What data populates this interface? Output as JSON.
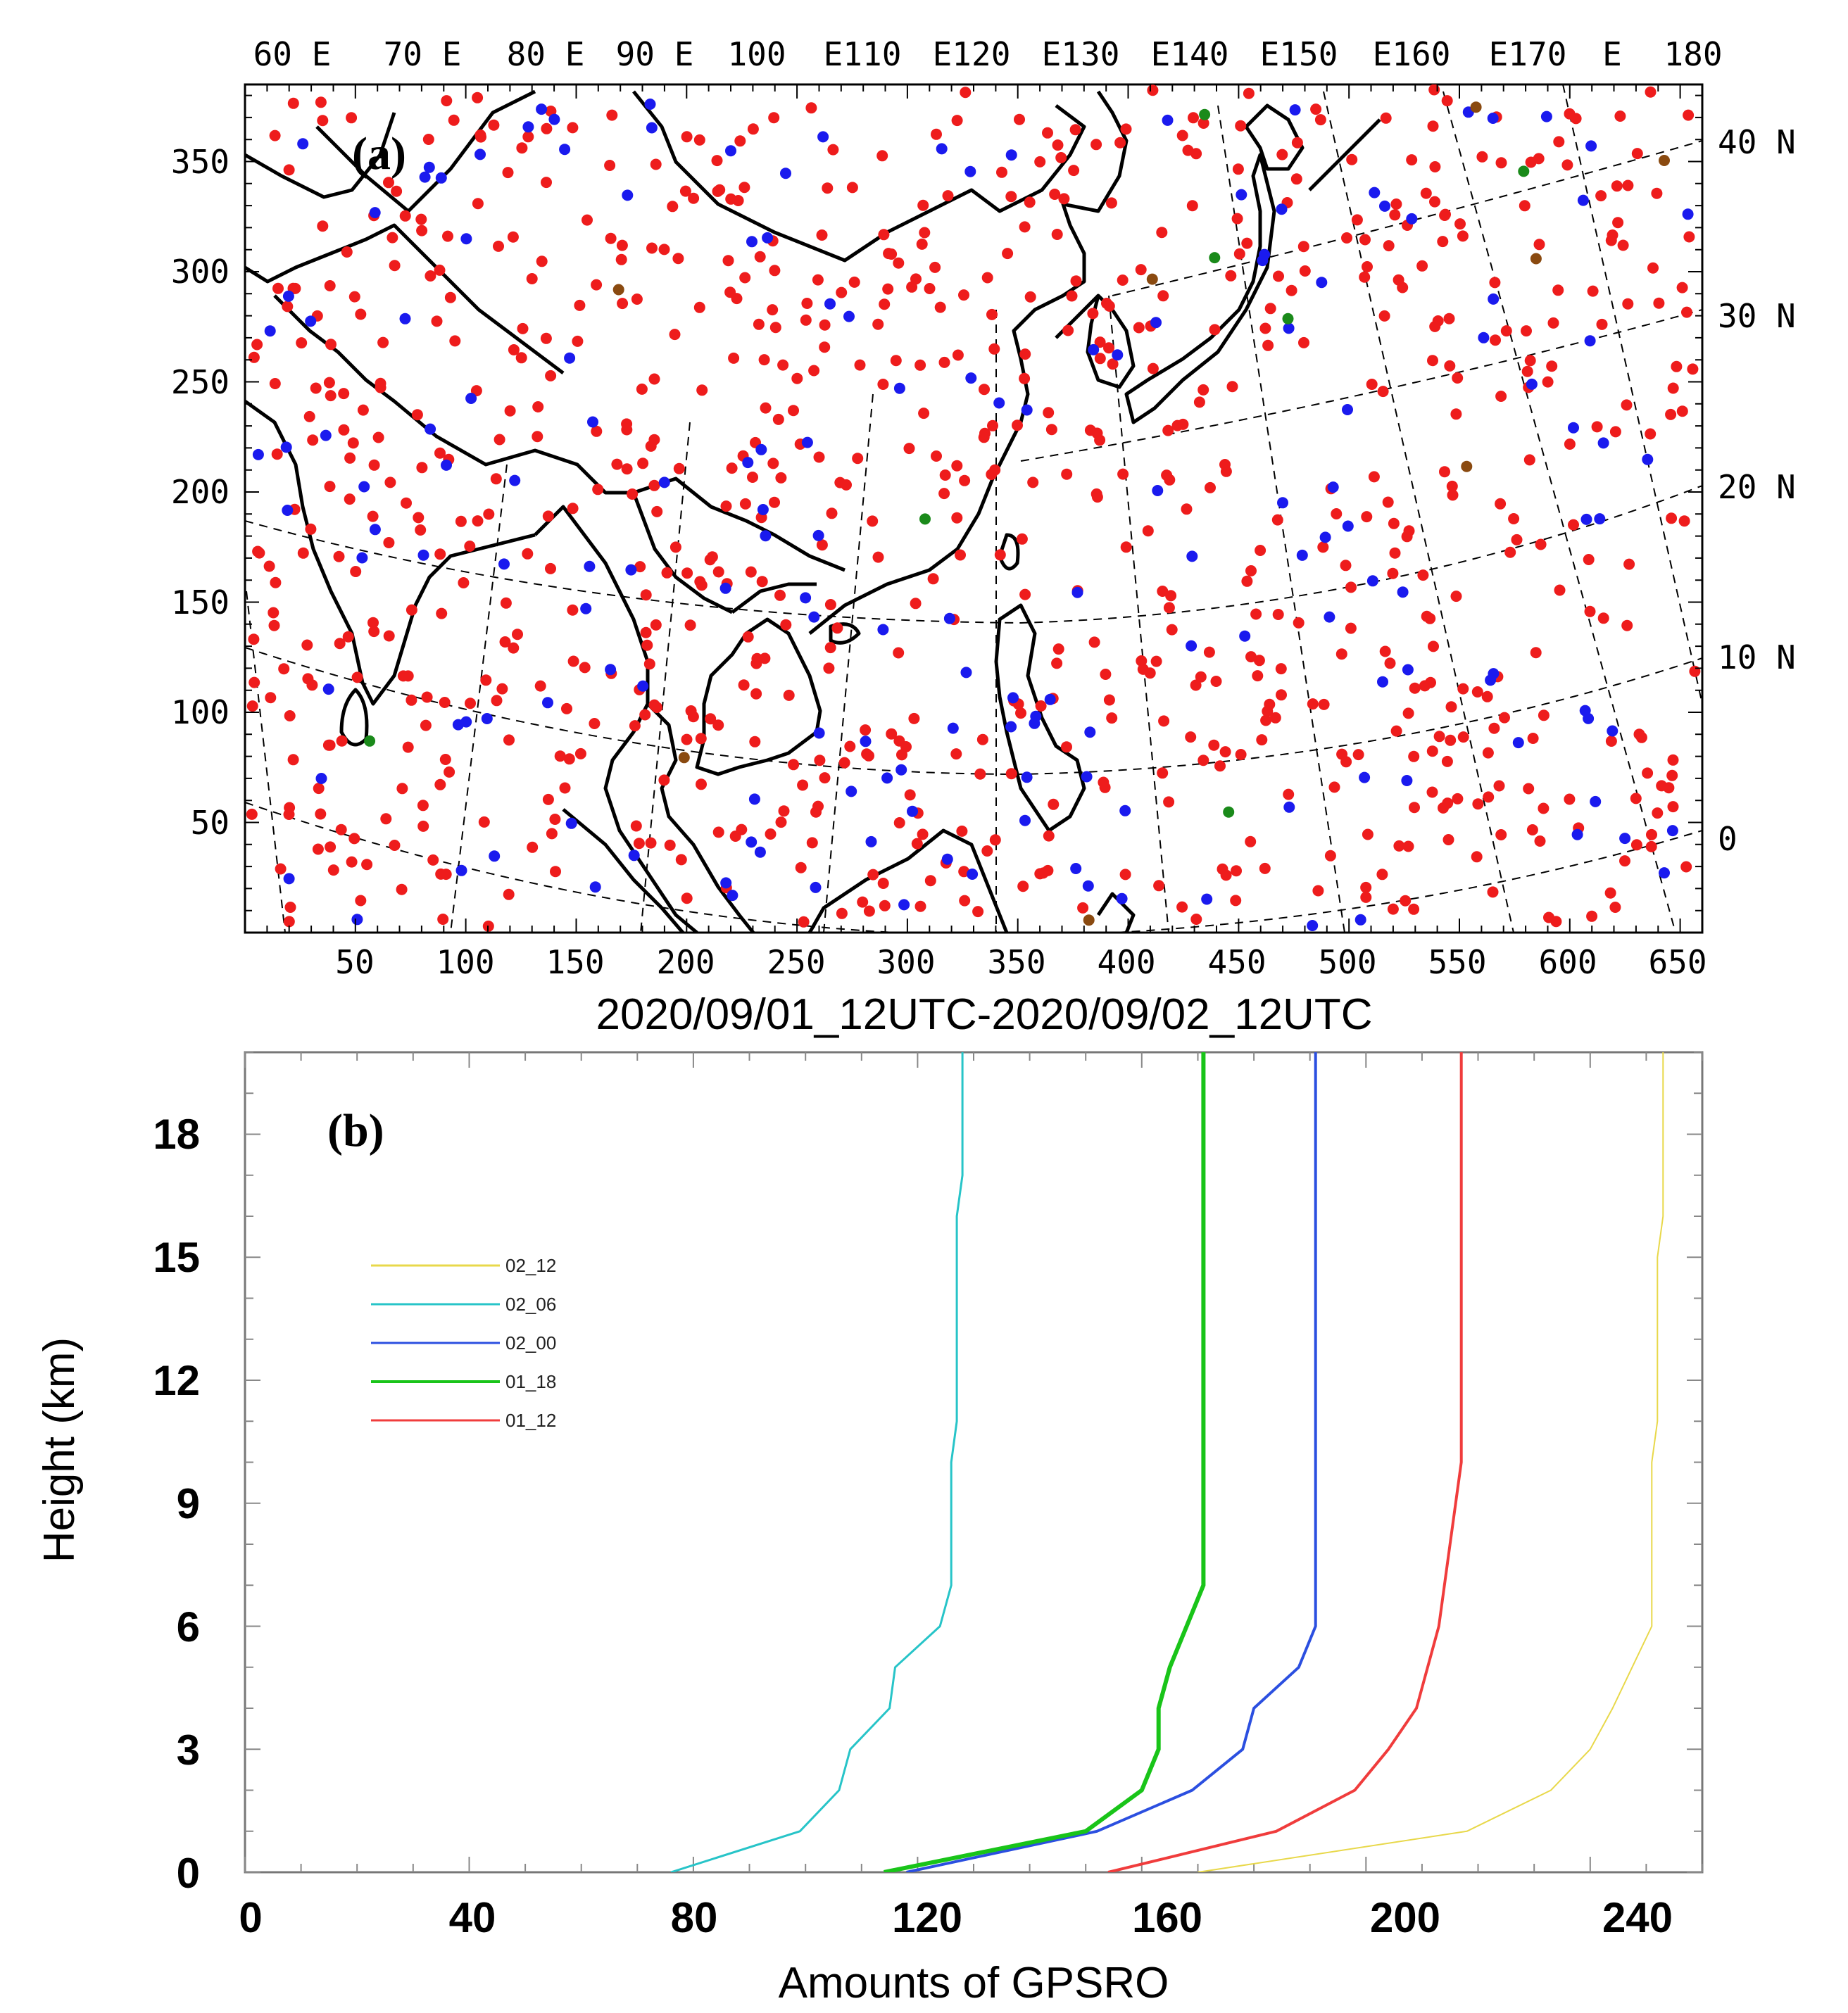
{
  "chart_data": [
    {
      "type": "scatter",
      "panel_label": "(a)",
      "title": "2020/09/01_12UTC-2020/09/02_12UTC",
      "x_ticks": [
        "50",
        "100",
        "150",
        "200",
        "250",
        "300",
        "350",
        "400",
        "450",
        "500",
        "550",
        "600",
        "650"
      ],
      "y_ticks": [
        "50",
        "100",
        "150",
        "200",
        "250",
        "300",
        "350"
      ],
      "top_longitude_labels": [
        "60 E",
        "70 E",
        "80 E",
        "90 E",
        "100",
        "E110",
        "E120",
        "E130",
        "E140",
        "E150",
        "E160",
        "E170",
        "E",
        "180"
      ],
      "right_latitude_labels": [
        "40 N",
        "30 N",
        "20 N",
        "10 N",
        "0"
      ],
      "xlim": [
        0,
        660
      ],
      "ylim": [
        0,
        385
      ],
      "series": [
        {
          "name": "01_12",
          "color": "#ee1c1c",
          "count": 820
        },
        {
          "name": "02_00",
          "color": "#1a1aee",
          "count": 170
        },
        {
          "name": "02_06",
          "color": "#1a8a1a",
          "count": 7
        },
        {
          "name": "02_12",
          "color": "#8a4a10",
          "count": 8
        }
      ]
    },
    {
      "type": "line",
      "panel_label": "(b)",
      "xlabel": "Amounts of GPSRO",
      "ylabel": "Height (km)",
      "xlim": [
        0,
        260
      ],
      "ylim": [
        0,
        20
      ],
      "x_ticks": [
        "0",
        "40",
        "80",
        "120",
        "160",
        "200",
        "240"
      ],
      "y_ticks": [
        "0",
        "3",
        "6",
        "9",
        "12",
        "15",
        "18"
      ],
      "series": [
        {
          "name": "02_12",
          "color": "#e8d84a",
          "width": 2,
          "points": [
            [
              170,
              0
            ],
            [
              218,
              1
            ],
            [
              233,
              2
            ],
            [
              240,
              3
            ],
            [
              244,
              4
            ],
            [
              251,
              6
            ],
            [
              251,
              9
            ],
            [
              251,
              10
            ],
            [
              252,
              11
            ],
            [
              252,
              15
            ],
            [
              253,
              16
            ],
            [
              253,
              20
            ]
          ]
        },
        {
          "name": "02_06",
          "color": "#27c4c8",
          "width": 3,
          "points": [
            [
              76,
              0
            ],
            [
              99,
              1
            ],
            [
              106,
              2
            ],
            [
              108,
              3
            ],
            [
              115,
              4
            ],
            [
              116,
              5
            ],
            [
              124,
              6
            ],
            [
              126,
              7
            ],
            [
              126,
              10
            ],
            [
              127,
              11
            ],
            [
              127,
              16
            ],
            [
              128,
              17
            ],
            [
              128,
              20
            ]
          ]
        },
        {
          "name": "02_00",
          "color": "#2b4fe0",
          "width": 4,
          "points": [
            [
              118,
              0
            ],
            [
              152,
              1
            ],
            [
              169,
              2
            ],
            [
              178,
              3
            ],
            [
              180,
              4
            ],
            [
              188,
              5
            ],
            [
              191,
              6
            ],
            [
              191,
              20
            ]
          ]
        },
        {
          "name": "01_18",
          "color": "#19c419",
          "width": 6,
          "points": [
            [
              114,
              0
            ],
            [
              150,
              1
            ],
            [
              160,
              2
            ],
            [
              163,
              3
            ],
            [
              163,
              4
            ],
            [
              165,
              5
            ],
            [
              171,
              7
            ],
            [
              171,
              20
            ]
          ]
        },
        {
          "name": "01_12",
          "color": "#f03c3c",
          "width": 4,
          "points": [
            [
              154,
              0
            ],
            [
              184,
              1
            ],
            [
              198,
              2
            ],
            [
              204,
              3
            ],
            [
              209,
              4
            ],
            [
              213,
              6
            ],
            [
              215,
              8
            ],
            [
              217,
              10
            ],
            [
              217,
              20
            ]
          ]
        }
      ]
    }
  ]
}
